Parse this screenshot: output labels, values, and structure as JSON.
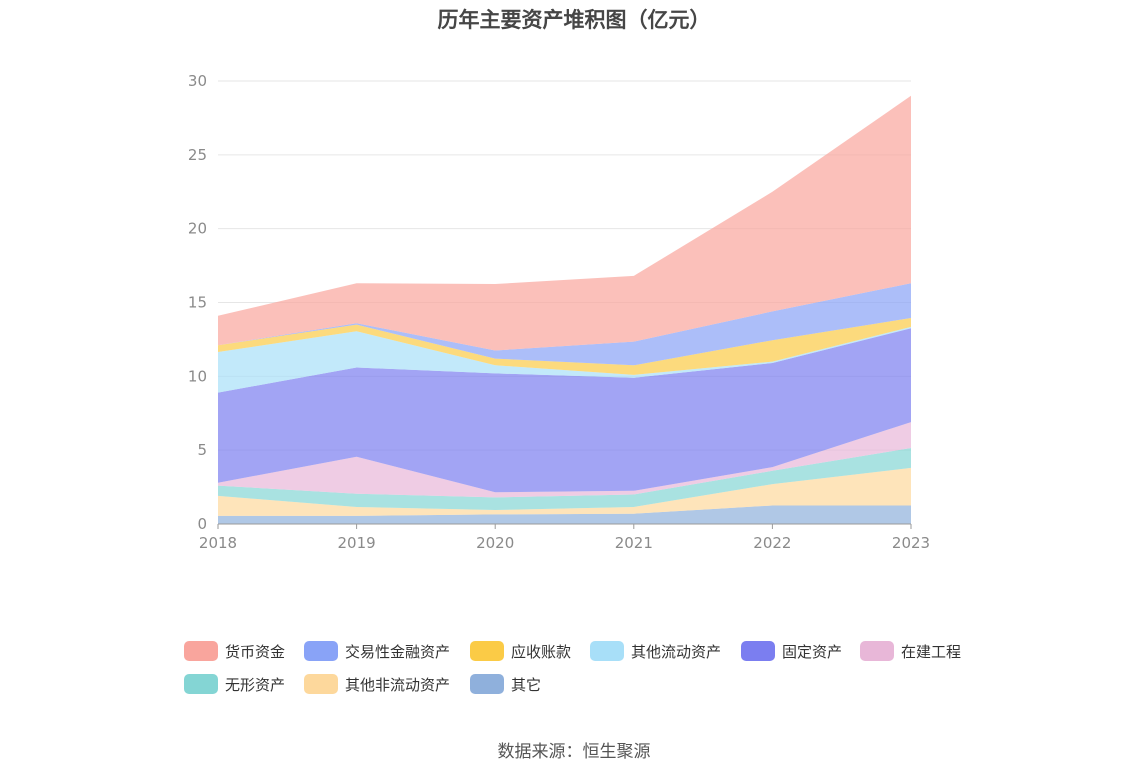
{
  "title": "历年主要资产堆积图（亿元）",
  "source": "数据来源：恒生聚源",
  "chart_data": {
    "type": "area",
    "stacked": true,
    "title": "历年主要资产堆积图（亿元）",
    "xlabel": "",
    "ylabel": "",
    "ylim": [
      0,
      30
    ],
    "yticks": [
      "0",
      "5",
      "10",
      "15",
      "20",
      "25",
      "30"
    ],
    "categories": [
      "2018",
      "2019",
      "2020",
      "2021",
      "2022",
      "2023"
    ],
    "grid": true,
    "legend_position": "bottom",
    "series": [
      {
        "name": "其它",
        "color": "#8fb0dc",
        "values": [
          0.55,
          0.55,
          0.65,
          0.7,
          1.25,
          1.25
        ]
      },
      {
        "name": "其他非流动资产",
        "color": "#fdd89c",
        "values": [
          1.35,
          0.6,
          0.3,
          0.45,
          1.45,
          2.55
        ]
      },
      {
        "name": "无形资产",
        "color": "#84d5d4",
        "values": [
          0.7,
          0.9,
          0.85,
          0.85,
          0.9,
          1.35
        ]
      },
      {
        "name": "在建工程",
        "color": "#e8b7d8",
        "values": [
          0.2,
          2.5,
          0.35,
          0.25,
          0.25,
          1.75
        ]
      },
      {
        "name": "固定资产",
        "color": "#7b7ef0",
        "values": [
          6.1,
          6.05,
          8.05,
          7.65,
          7.05,
          6.35
        ]
      },
      {
        "name": "其他流动资产",
        "color": "#a8dff8",
        "values": [
          2.75,
          2.45,
          0.55,
          0.2,
          0.1,
          0.1
        ]
      },
      {
        "name": "应收账款",
        "color": "#fbcb46",
        "values": [
          0.45,
          0.45,
          0.45,
          0.65,
          1.45,
          0.6
        ]
      },
      {
        "name": "交易性金融资产",
        "color": "#89a3f7",
        "values": [
          0,
          0.1,
          0.55,
          1.6,
          1.95,
          2.35
        ]
      },
      {
        "name": "货币资金",
        "color": "#f9a59d",
        "values": [
          2.0,
          2.7,
          4.5,
          4.45,
          8.1,
          12.7
        ]
      }
    ]
  },
  "legend": [
    {
      "label": "货币资金",
      "color": "#f9a59d"
    },
    {
      "label": "交易性金融资产",
      "color": "#89a3f7"
    },
    {
      "label": "应收账款",
      "color": "#fbcb46"
    },
    {
      "label": "其他流动资产",
      "color": "#a8dff8"
    },
    {
      "label": "固定资产",
      "color": "#7b7ef0"
    },
    {
      "label": "在建工程",
      "color": "#e8b7d8"
    },
    {
      "label": "无形资产",
      "color": "#84d5d4"
    },
    {
      "label": "其他非流动资产",
      "color": "#fdd89c"
    },
    {
      "label": "其它",
      "color": "#8fb0dc"
    }
  ]
}
